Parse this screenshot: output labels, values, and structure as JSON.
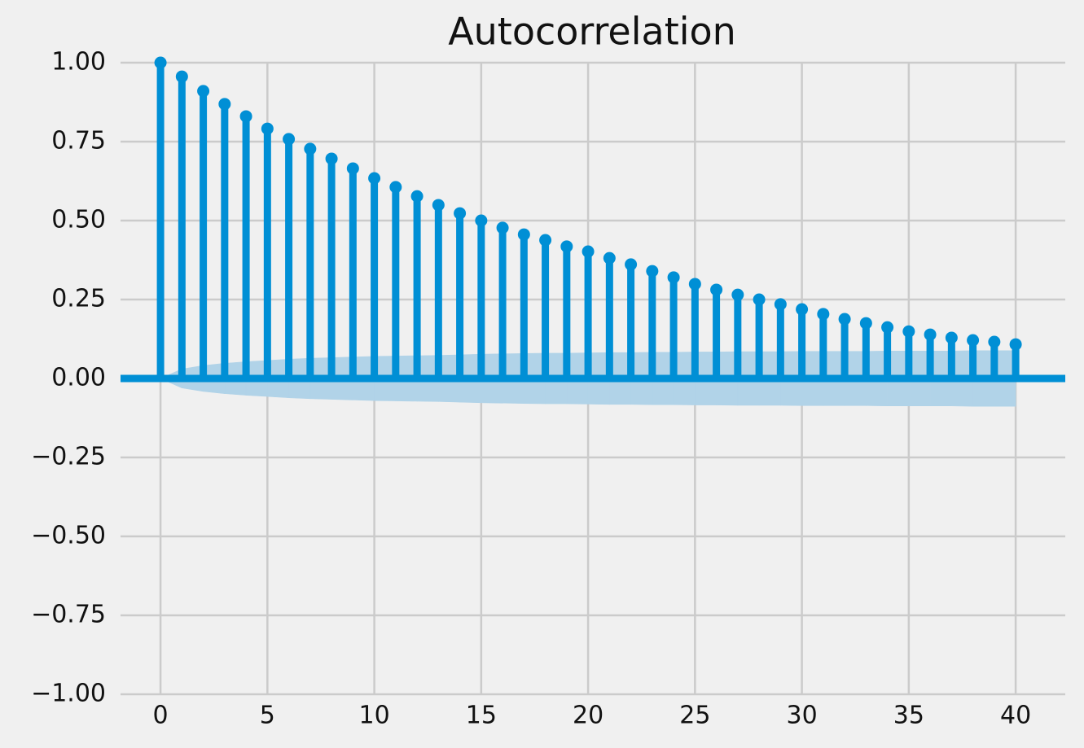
{
  "chart_data": {
    "type": "stem",
    "title": "Autocorrelation",
    "x": [
      0,
      1,
      2,
      3,
      4,
      5,
      6,
      7,
      8,
      9,
      10,
      11,
      12,
      13,
      14,
      15,
      16,
      17,
      18,
      19,
      20,
      21,
      22,
      23,
      24,
      25,
      26,
      27,
      28,
      29,
      30,
      31,
      32,
      33,
      34,
      35,
      36,
      37,
      38,
      39,
      40
    ],
    "values": [
      1.0,
      0.956,
      0.91,
      0.869,
      0.83,
      0.791,
      0.758,
      0.727,
      0.696,
      0.665,
      0.634,
      0.606,
      0.577,
      0.549,
      0.523,
      0.5,
      0.477,
      0.456,
      0.438,
      0.418,
      0.402,
      0.381,
      0.361,
      0.34,
      0.32,
      0.299,
      0.281,
      0.265,
      0.25,
      0.235,
      0.219,
      0.204,
      0.188,
      0.175,
      0.162,
      0.149,
      0.139,
      0.129,
      0.121,
      0.116,
      0.108
    ],
    "confidence_band": [
      0,
      0.03,
      0.041,
      0.048,
      0.053,
      0.057,
      0.061,
      0.064,
      0.066,
      0.068,
      0.07,
      0.071,
      0.072,
      0.073,
      0.075,
      0.077,
      0.078,
      0.079,
      0.08,
      0.08,
      0.081,
      0.082,
      0.082,
      0.083,
      0.083,
      0.084,
      0.084,
      0.085,
      0.085,
      0.085,
      0.086,
      0.086,
      0.086,
      0.086,
      0.087,
      0.087,
      0.087,
      0.087,
      0.088,
      0.088,
      0.088
    ],
    "color": "#008fd5",
    "band_color": "#b1d3e8",
    "xlim": [
      -1.87,
      42.32
    ],
    "ylim": [
      -1,
      1
    ],
    "xticks": [
      0,
      5,
      10,
      15,
      20,
      25,
      30,
      35,
      40
    ],
    "yticks": [
      {
        "value": -1,
        "label": "−1.00"
      },
      {
        "value": -0.75,
        "label": "−0.75"
      },
      {
        "value": -0.5,
        "label": "−0.50"
      },
      {
        "value": -0.25,
        "label": "−0.25"
      },
      {
        "value": 0,
        "label": "0.00"
      },
      {
        "value": 0.25,
        "label": "0.25"
      },
      {
        "value": 0.5,
        "label": "0.50"
      },
      {
        "value": 0.75,
        "label": "0.75"
      },
      {
        "value": 1,
        "label": "1.00"
      }
    ],
    "grid": true
  }
}
